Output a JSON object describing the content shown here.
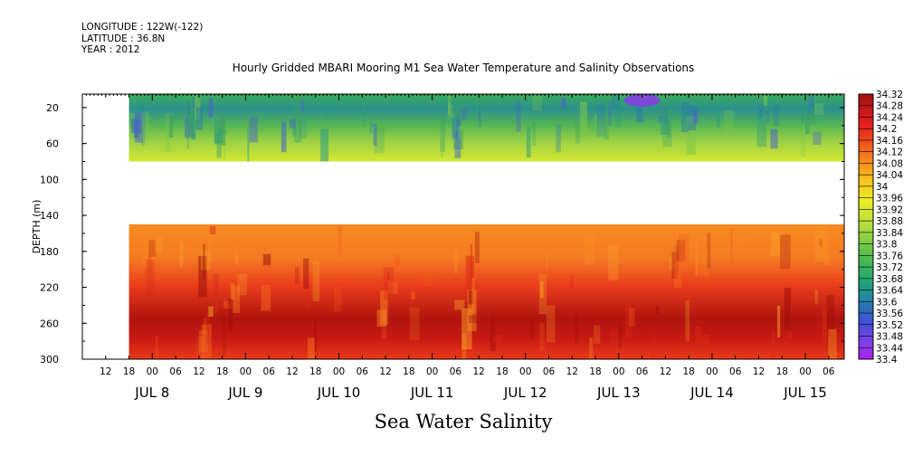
{
  "header": {
    "longitude": "LONGITUDE : 122W(-122)",
    "latitude": "LATITUDE : 36.8N",
    "year": "YEAR : 2012"
  },
  "chart_data": {
    "type": "heatmap",
    "title": "Hourly Gridded MBARI Mooring M1 Sea Water Temperature and Salinity Observations",
    "xlabel": "Sea Water Salinity",
    "ylabel": "DEPTH (m)",
    "x_range": [
      "2012-07-07T06:00",
      "2012-07-15T10:00"
    ],
    "data_start": "2012-07-07T18:00",
    "y_range": [
      300,
      5
    ],
    "y_ticks": [
      20,
      60,
      100,
      140,
      180,
      220,
      260,
      300
    ],
    "x_hour_ticks": [
      "12",
      "18",
      "00",
      "06",
      "12",
      "18",
      "00",
      "06",
      "12",
      "18",
      "00",
      "06",
      "12",
      "18",
      "00",
      "06",
      "12",
      "18",
      "00",
      "06",
      "12",
      "18",
      "00",
      "06",
      "12",
      "18",
      "00",
      "06",
      "12",
      "18",
      "00",
      "06"
    ],
    "x_date_labels": [
      "JUL  8",
      "JUL  9",
      "JUL 10",
      "JUL 11",
      "JUL 12",
      "JUL 13",
      "JUL 14",
      "JUL 15"
    ],
    "data_gap_depth": [
      80,
      150
    ],
    "colorbar": {
      "labels": [
        "34.32",
        "34.28",
        "34.24",
        "34.2",
        "34.16",
        "34.12",
        "34.08",
        "34.04",
        "34",
        "33.96",
        "33.92",
        "33.88",
        "33.84",
        "33.8",
        "33.76",
        "33.72",
        "33.68",
        "33.64",
        "33.6",
        "33.56",
        "33.52",
        "33.48",
        "33.44",
        "33.4"
      ],
      "min": 33.4,
      "max": 34.32
    },
    "depth_profile": [
      {
        "depth": 10,
        "salinity": 33.74
      },
      {
        "depth": 20,
        "salinity": 33.66
      },
      {
        "depth": 40,
        "salinity": 33.76
      },
      {
        "depth": 60,
        "salinity": 33.86
      },
      {
        "depth": 75,
        "salinity": 33.92
      },
      {
        "depth": 150,
        "salinity": 34.15
      },
      {
        "depth": 180,
        "salinity": 34.15
      },
      {
        "depth": 210,
        "salinity": 34.2
      },
      {
        "depth": 240,
        "salinity": 34.25
      },
      {
        "depth": 260,
        "salinity": 34.28
      },
      {
        "depth": 300,
        "salinity": 34.22
      }
    ],
    "grid": false
  }
}
